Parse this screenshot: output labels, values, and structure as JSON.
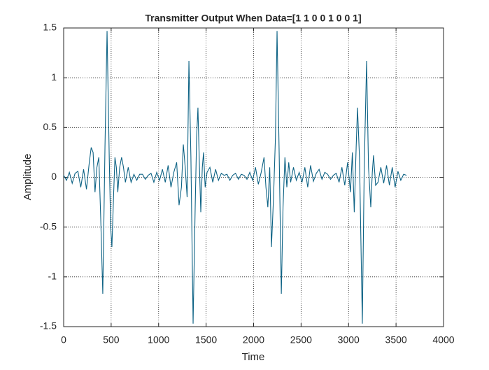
{
  "chart_data": {
    "type": "line",
    "title": "Transmitter Output When Data=[1 1 0 0 1 0 0 1]",
    "x_label": "Time",
    "y_label": "Amplitude",
    "x": [
      0,
      30,
      60,
      90,
      120,
      150,
      180,
      210,
      240,
      270,
      290,
      310,
      330,
      350,
      370,
      390,
      412,
      435,
      457,
      480,
      495,
      508,
      525,
      540,
      555,
      570,
      590,
      610,
      630,
      650,
      680,
      710,
      740,
      770,
      800,
      830,
      860,
      890,
      920,
      950,
      980,
      1010,
      1040,
      1070,
      1100,
      1130,
      1160,
      1190,
      1215,
      1240,
      1260,
      1280,
      1300,
      1319,
      1340,
      1363,
      1385,
      1400,
      1414,
      1430,
      1444,
      1460,
      1473,
      1490,
      1510,
      1540,
      1570,
      1600,
      1630,
      1660,
      1690,
      1720,
      1750,
      1780,
      1810,
      1840,
      1870,
      1900,
      1930,
      1960,
      1990,
      2020,
      2050,
      2080,
      2110,
      2130,
      2150,
      2170,
      2188,
      2210,
      2230,
      2247,
      2270,
      2292,
      2310,
      2330,
      2350,
      2370,
      2390,
      2420,
      2450,
      2480,
      2510,
      2540,
      2570,
      2600,
      2630,
      2660,
      2690,
      2720,
      2750,
      2780,
      2810,
      2840,
      2870,
      2900,
      2930,
      2960,
      2990,
      3020,
      3040,
      3060,
      3080,
      3094,
      3115,
      3145,
      3165,
      3190,
      3210,
      3234,
      3250,
      3263,
      3285,
      3310,
      3340,
      3370,
      3400,
      3430,
      3460,
      3490,
      3520,
      3550,
      3580,
      3610
    ],
    "series": [
      {
        "color": "#0e6385",
        "values": [
          0.02,
          -0.03,
          0.05,
          -0.06,
          0.04,
          0.06,
          -0.1,
          0.08,
          -0.12,
          0.15,
          0.3,
          0.25,
          -0.15,
          0.1,
          0.2,
          -0.4,
          -1.17,
          0.3,
          1.47,
          0.2,
          -0.5,
          -0.7,
          -0.2,
          0.2,
          0.1,
          -0.15,
          0.1,
          0.2,
          0.1,
          -0.05,
          0.1,
          -0.05,
          0.03,
          -0.03,
          0.03,
          0.03,
          -0.02,
          0.02,
          0.04,
          -0.05,
          0.05,
          -0.03,
          0.08,
          -0.05,
          0.12,
          -0.1,
          0.05,
          0.15,
          -0.28,
          -0.1,
          0.33,
          0.1,
          -0.2,
          1.17,
          0.2,
          -1.47,
          -0.3,
          0.4,
          0.7,
          0.1,
          -0.35,
          0.1,
          0.25,
          -0.1,
          0.05,
          0.1,
          -0.05,
          0.08,
          -0.03,
          0.04,
          0.02,
          0.03,
          -0.03,
          0.02,
          0.04,
          -0.02,
          0.03,
          0.02,
          -0.02,
          0.05,
          -0.03,
          0.1,
          -0.07,
          0.05,
          0.2,
          -0.1,
          -0.3,
          0.1,
          -0.7,
          -0.2,
          0.4,
          1.47,
          0.2,
          -1.17,
          -0.3,
          0.2,
          -0.1,
          0.15,
          -0.05,
          0.1,
          -0.03,
          0.05,
          -0.05,
          0.1,
          -0.1,
          0.12,
          -0.04,
          0.04,
          0.08,
          -0.02,
          0.05,
          0.03,
          -0.02,
          0.02,
          0.04,
          -0.05,
          0.1,
          -0.08,
          0.15,
          -0.15,
          0.25,
          -0.35,
          0.3,
          0.7,
          0.2,
          -1.47,
          0.1,
          1.17,
          0.1,
          -0.3,
          0.05,
          0.22,
          -0.08,
          -0.05,
          0.1,
          -0.06,
          0.12,
          -0.08,
          0.1,
          -0.1,
          0.06,
          -0.03,
          0.03,
          0.02
        ]
      }
    ],
    "xlim": [
      0,
      4000
    ],
    "xticks": [
      0,
      500,
      1000,
      1500,
      2000,
      2500,
      3000,
      3500,
      4000
    ],
    "ylim": [
      -1.5,
      1.5
    ],
    "yticks": [
      {
        "value": -1.5,
        "label": "-1.5"
      },
      -1,
      {
        "value": -0.5,
        "label": "-0.5"
      },
      0,
      0.5,
      1,
      1.5
    ],
    "grid": true
  }
}
